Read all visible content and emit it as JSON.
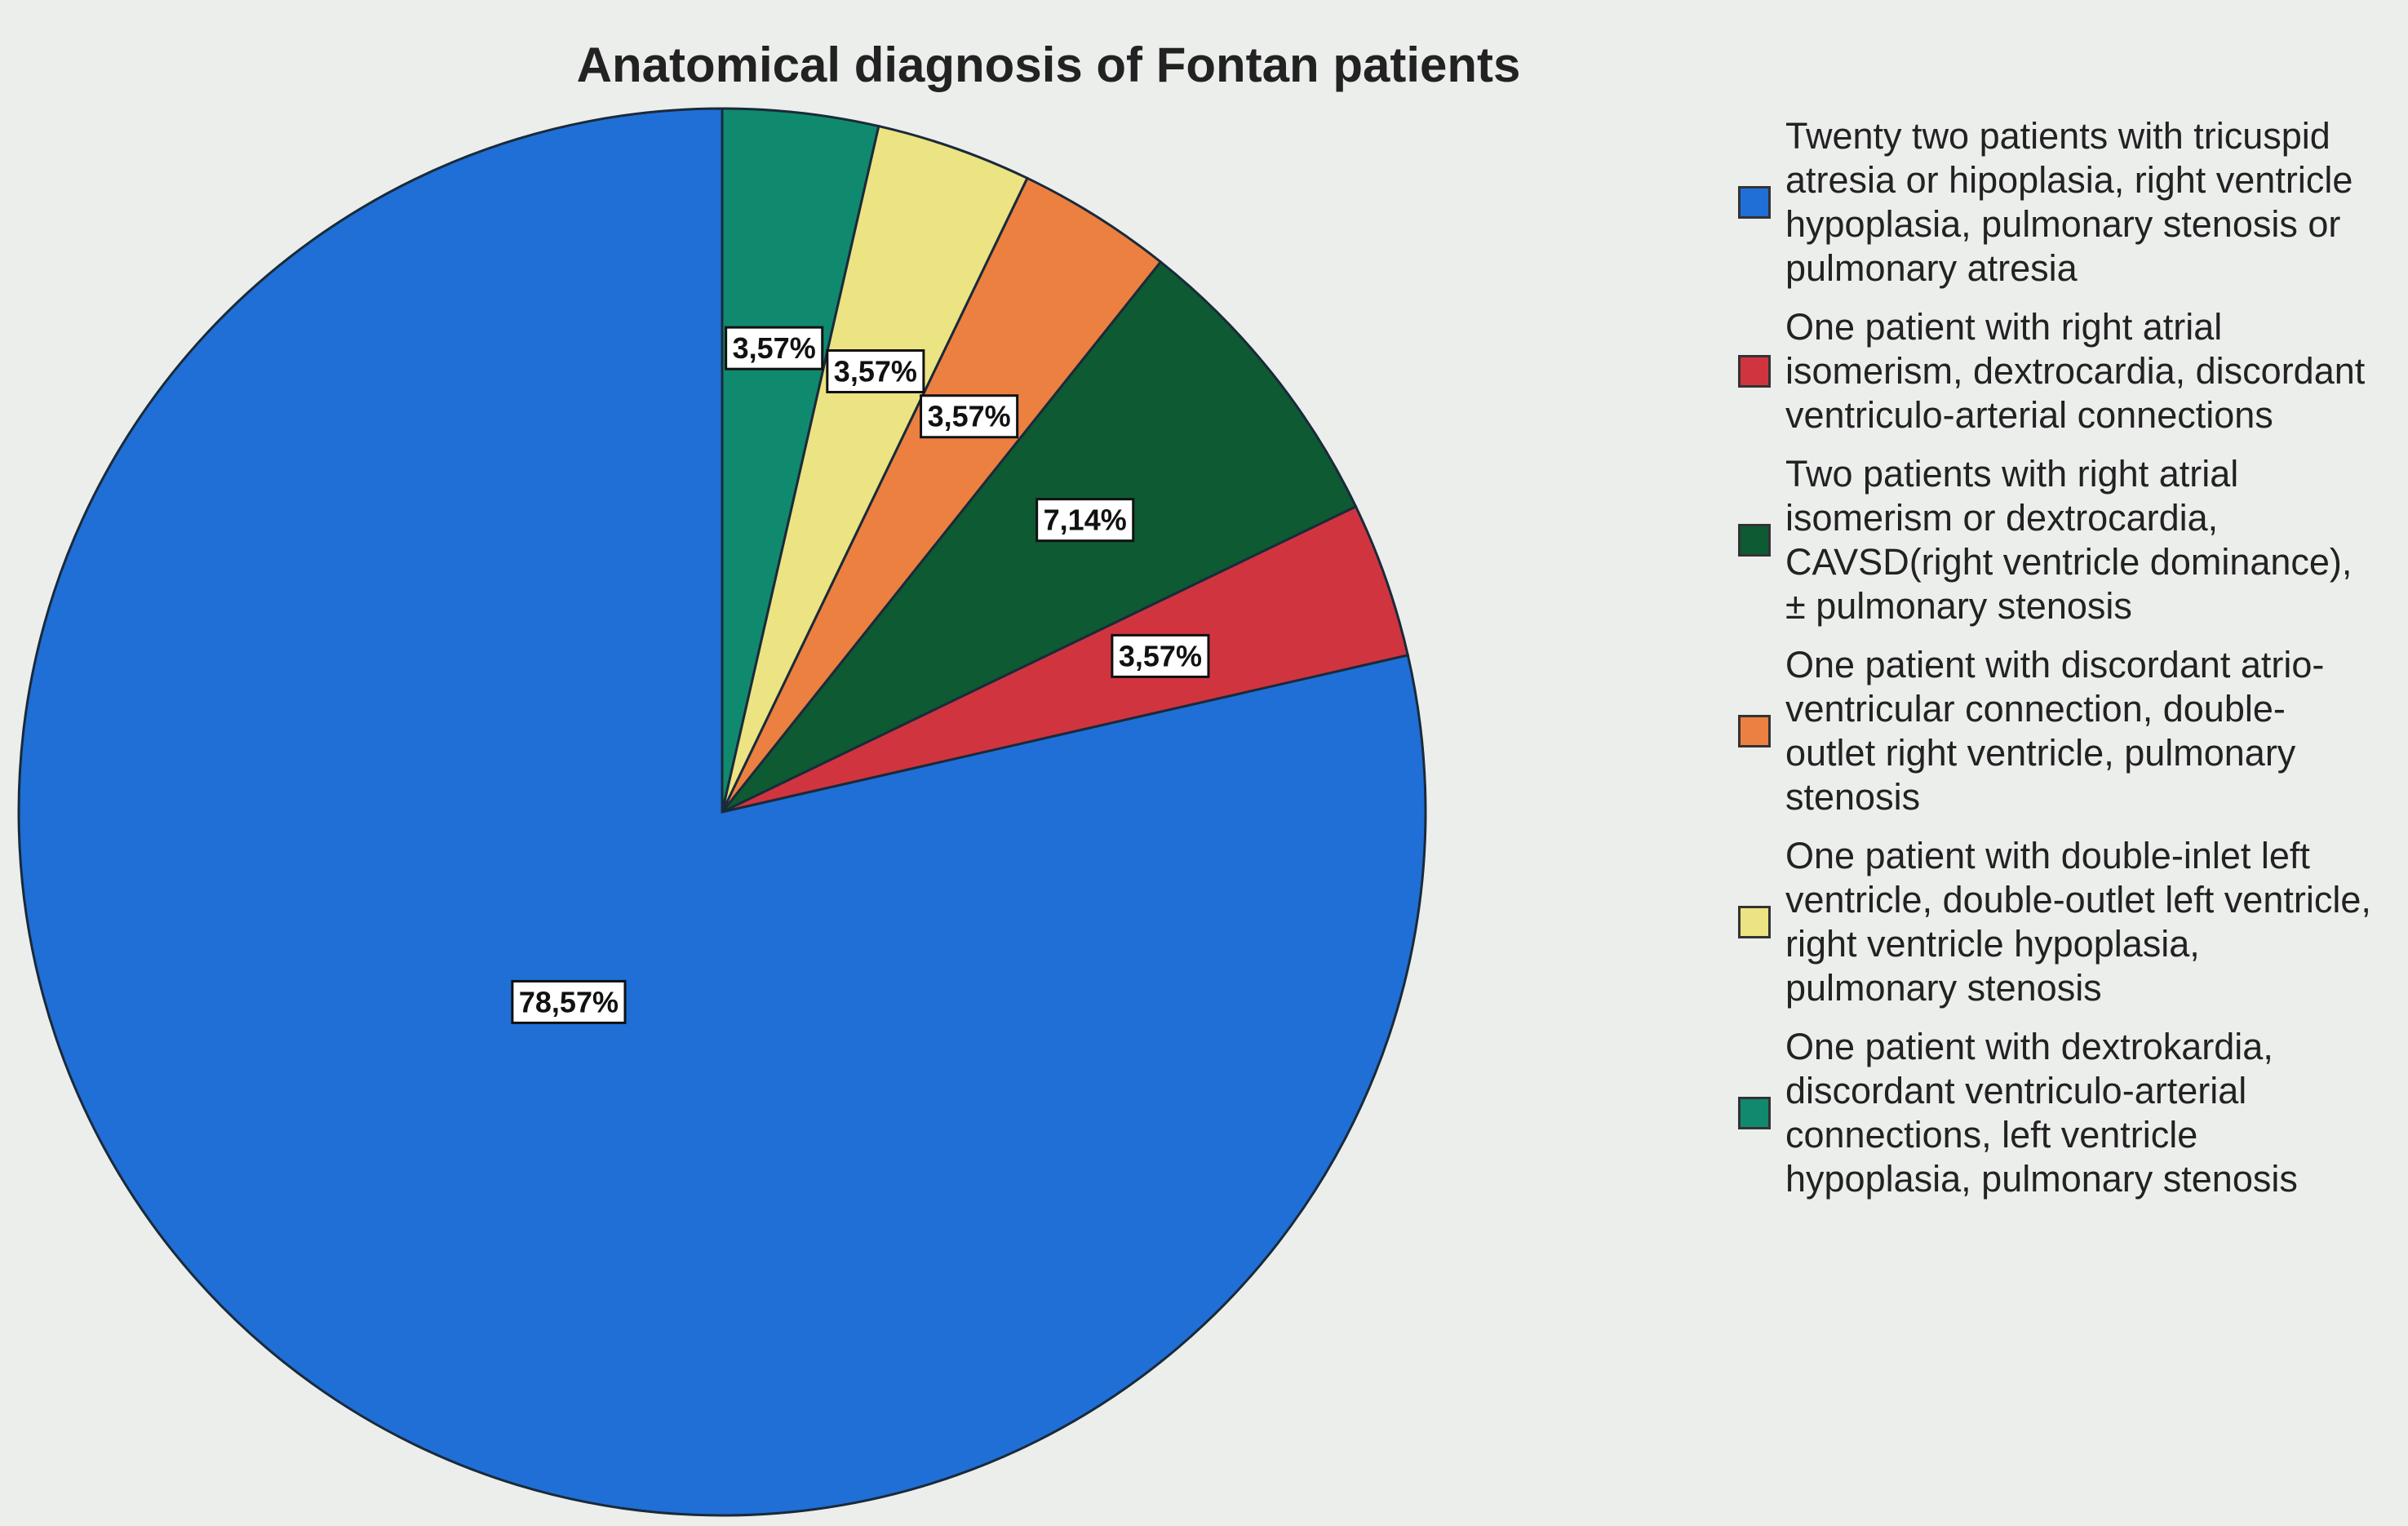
{
  "chart_data": {
    "type": "pie",
    "title": "Anatomical diagnosis of Fontan patients",
    "series": [
      {
        "name": "Twenty two patients with tricuspid atresia or hipoplasia, right ventricle hypoplasia, pulmonary stenosis or pulmonary atresia",
        "color": "#1f6fd6",
        "values": [
          78.57
        ],
        "value_labels": [
          "78,57%"
        ]
      },
      {
        "name": "One patient with right atrial isomerism, dextrocardia, discordant ventriculo-arterial connections",
        "color": "#d0353f",
        "values": [
          3.57
        ],
        "value_labels": [
          "3,57%"
        ]
      },
      {
        "name": "Two patients with right atrial isomerism or dextrocardia, CAVSD(right ventricle dominance), ± pulmonary stenosis",
        "color": "#0e5a33",
        "values": [
          7.14
        ],
        "value_labels": [
          "7,14%"
        ]
      },
      {
        "name": "One patient with discordant atrio-ventricular connection, double-outlet right ventricle, pulmonary stenosis",
        "color": "#ec8040",
        "values": [
          3.57
        ],
        "value_labels": [
          "3,57%"
        ]
      },
      {
        "name": "One patient with double-inlet left ventricle, double-outlet left ventricle, right ventricle hypoplasia, pulmonary stenosis",
        "color": "#ece383",
        "values": [
          3.57
        ],
        "value_labels": [
          "3,57%"
        ]
      },
      {
        "name": "One patient with dextrokardia, discordant ventriculo-arterial connections, left ventricle hypoplasia, pulmonary stenosis",
        "color": "#108a6e",
        "values": [
          3.57
        ],
        "value_labels": [
          "3,57%"
        ]
      }
    ]
  }
}
